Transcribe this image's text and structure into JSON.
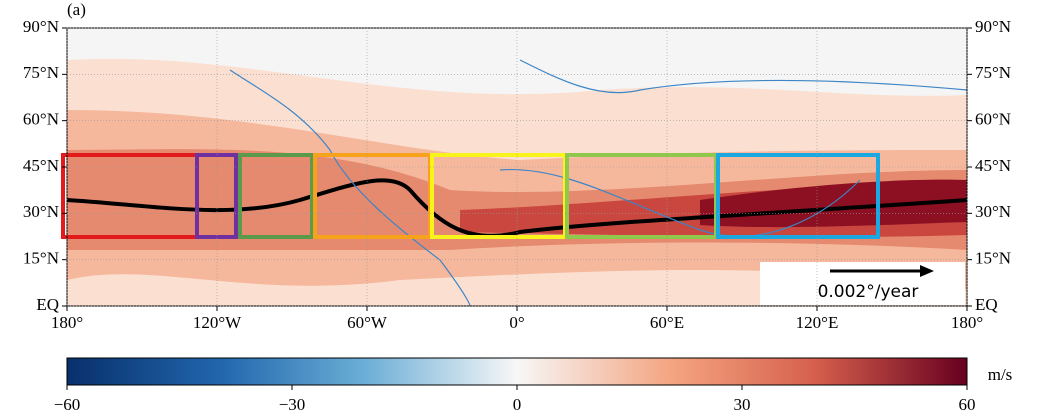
{
  "panel_label": "(a)",
  "lat_ticks": [
    {
      "value": 90,
      "label": "90°N"
    },
    {
      "value": 75,
      "label": "75°N"
    },
    {
      "value": 60,
      "label": "60°N"
    },
    {
      "value": 45,
      "label": "45°N"
    },
    {
      "value": 30,
      "label": "30°N"
    },
    {
      "value": 15,
      "label": "15°N"
    },
    {
      "value": 0,
      "label": "EQ"
    }
  ],
  "lon_ticks": [
    {
      "value": -180,
      "label": "180°"
    },
    {
      "value": -120,
      "label": "120°W"
    },
    {
      "value": -60,
      "label": "60°W"
    },
    {
      "value": 0,
      "label": "0°"
    },
    {
      "value": 60,
      "label": "60°E"
    },
    {
      "value": 120,
      "label": "120°E"
    },
    {
      "value": 180,
      "label": "180°"
    }
  ],
  "reference_arrow": "0.002°/year",
  "colorbar": {
    "lim": [
      -60,
      60
    ],
    "unit": "m/s",
    "ticks": [
      {
        "value": -60,
        "label": "−60"
      },
      {
        "value": -30,
        "label": "−30"
      },
      0,
      30,
      60
    ]
  }
}
